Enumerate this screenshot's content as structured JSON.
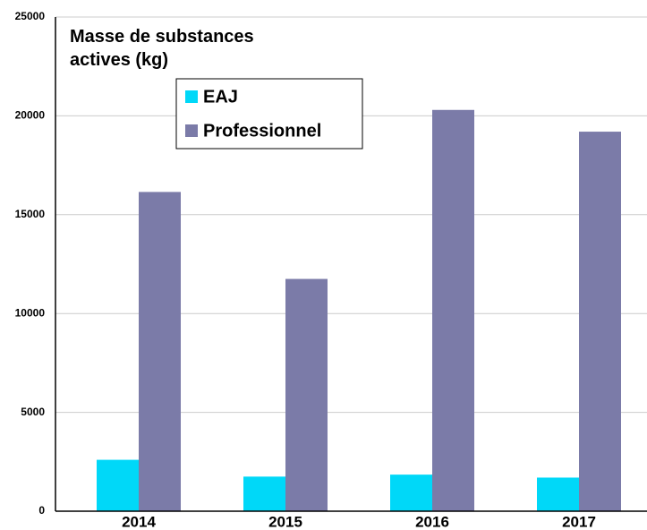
{
  "chart_data": {
    "type": "bar",
    "title": "Masse de substances actives (kg)",
    "categories": [
      "2014",
      "2015",
      "2016",
      "2017"
    ],
    "series": [
      {
        "name": "EAJ",
        "color": "#00d8f8",
        "values": [
          2600,
          1750,
          1850,
          1700
        ]
      },
      {
        "name": "Professionnel",
        "color": "#7b7ba8",
        "values": [
          16150,
          11750,
          20300,
          19200
        ]
      }
    ],
    "ylim": [
      0,
      25000
    ],
    "yticks": [
      0,
      5000,
      10000,
      15000,
      20000,
      25000
    ],
    "grid": true,
    "legend": "top"
  }
}
